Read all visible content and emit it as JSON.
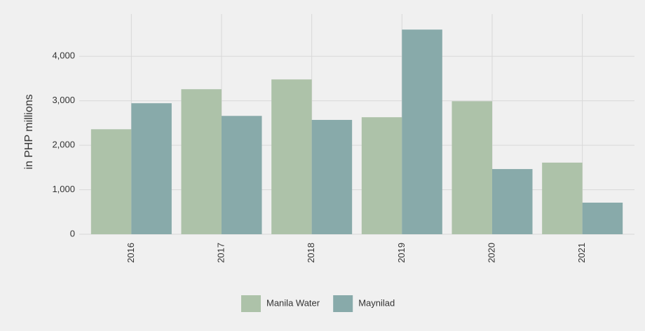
{
  "chart_data": {
    "type": "bar",
    "y_label": "in PHP millions",
    "categories": [
      "2016",
      "2017",
      "2018",
      "2019",
      "2020",
      "2021"
    ],
    "series": [
      {
        "name": "Manila Water",
        "color": "#adc2a9",
        "values": [
          2360,
          3260,
          3480,
          2630,
          2990,
          1610
        ]
      },
      {
        "name": "Maynilad",
        "color": "#88aaaa",
        "values": [
          2945,
          2660,
          2570,
          4600,
          1465,
          710
        ]
      }
    ],
    "ylim": [
      0,
      4950
    ],
    "yticks": [
      0,
      {
        "value": 1000,
        "label": "1,000"
      },
      {
        "value": 2000,
        "label": "2,000"
      },
      {
        "value": 3000,
        "label": "3,000"
      },
      {
        "value": 4000,
        "label": "4,000"
      }
    ],
    "grid": true,
    "legend": "bottom"
  }
}
